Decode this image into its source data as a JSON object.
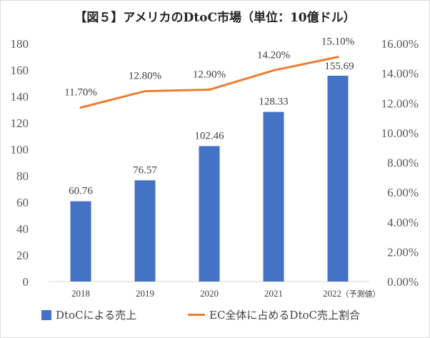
{
  "chart_data": {
    "title": "【図５】アメリカのDtoC市場（単位：10億ドル）",
    "categories": [
      "2018",
      "2019",
      "2020",
      "2021",
      "2022"
    ],
    "category_note": "（予測値）",
    "series": [
      {
        "name": "DtoCによる売上",
        "type": "bar",
        "axis": "left",
        "values": [
          60.76,
          76.57,
          102.46,
          128.33,
          155.69
        ],
        "labels": [
          "60.76",
          "76.57",
          "102.46",
          "128.33",
          "155.69"
        ]
      },
      {
        "name": "EC全体に占めるDtoC売上割合",
        "type": "line",
        "axis": "right",
        "values": [
          11.7,
          12.8,
          12.9,
          14.2,
          15.1
        ],
        "labels": [
          "11.70%",
          "12.80%",
          "12.90%",
          "14.20%",
          "15.10%"
        ]
      }
    ],
    "y_left": {
      "min": 0,
      "max": 180,
      "ticks": [
        "0",
        "20",
        "40",
        "60",
        "80",
        "100",
        "120",
        "140",
        "160",
        "180"
      ]
    },
    "y_right": {
      "min": 0,
      "max": 16,
      "ticks": [
        "0.00%",
        "2.00%",
        "4.00%",
        "6.00%",
        "8.00%",
        "10.00%",
        "12.00%",
        "14.00%",
        "16.00%"
      ]
    },
    "grid": false,
    "legend_position": "bottom",
    "colors": {
      "bar": "#4472c4",
      "line": "#ed7d31"
    }
  }
}
